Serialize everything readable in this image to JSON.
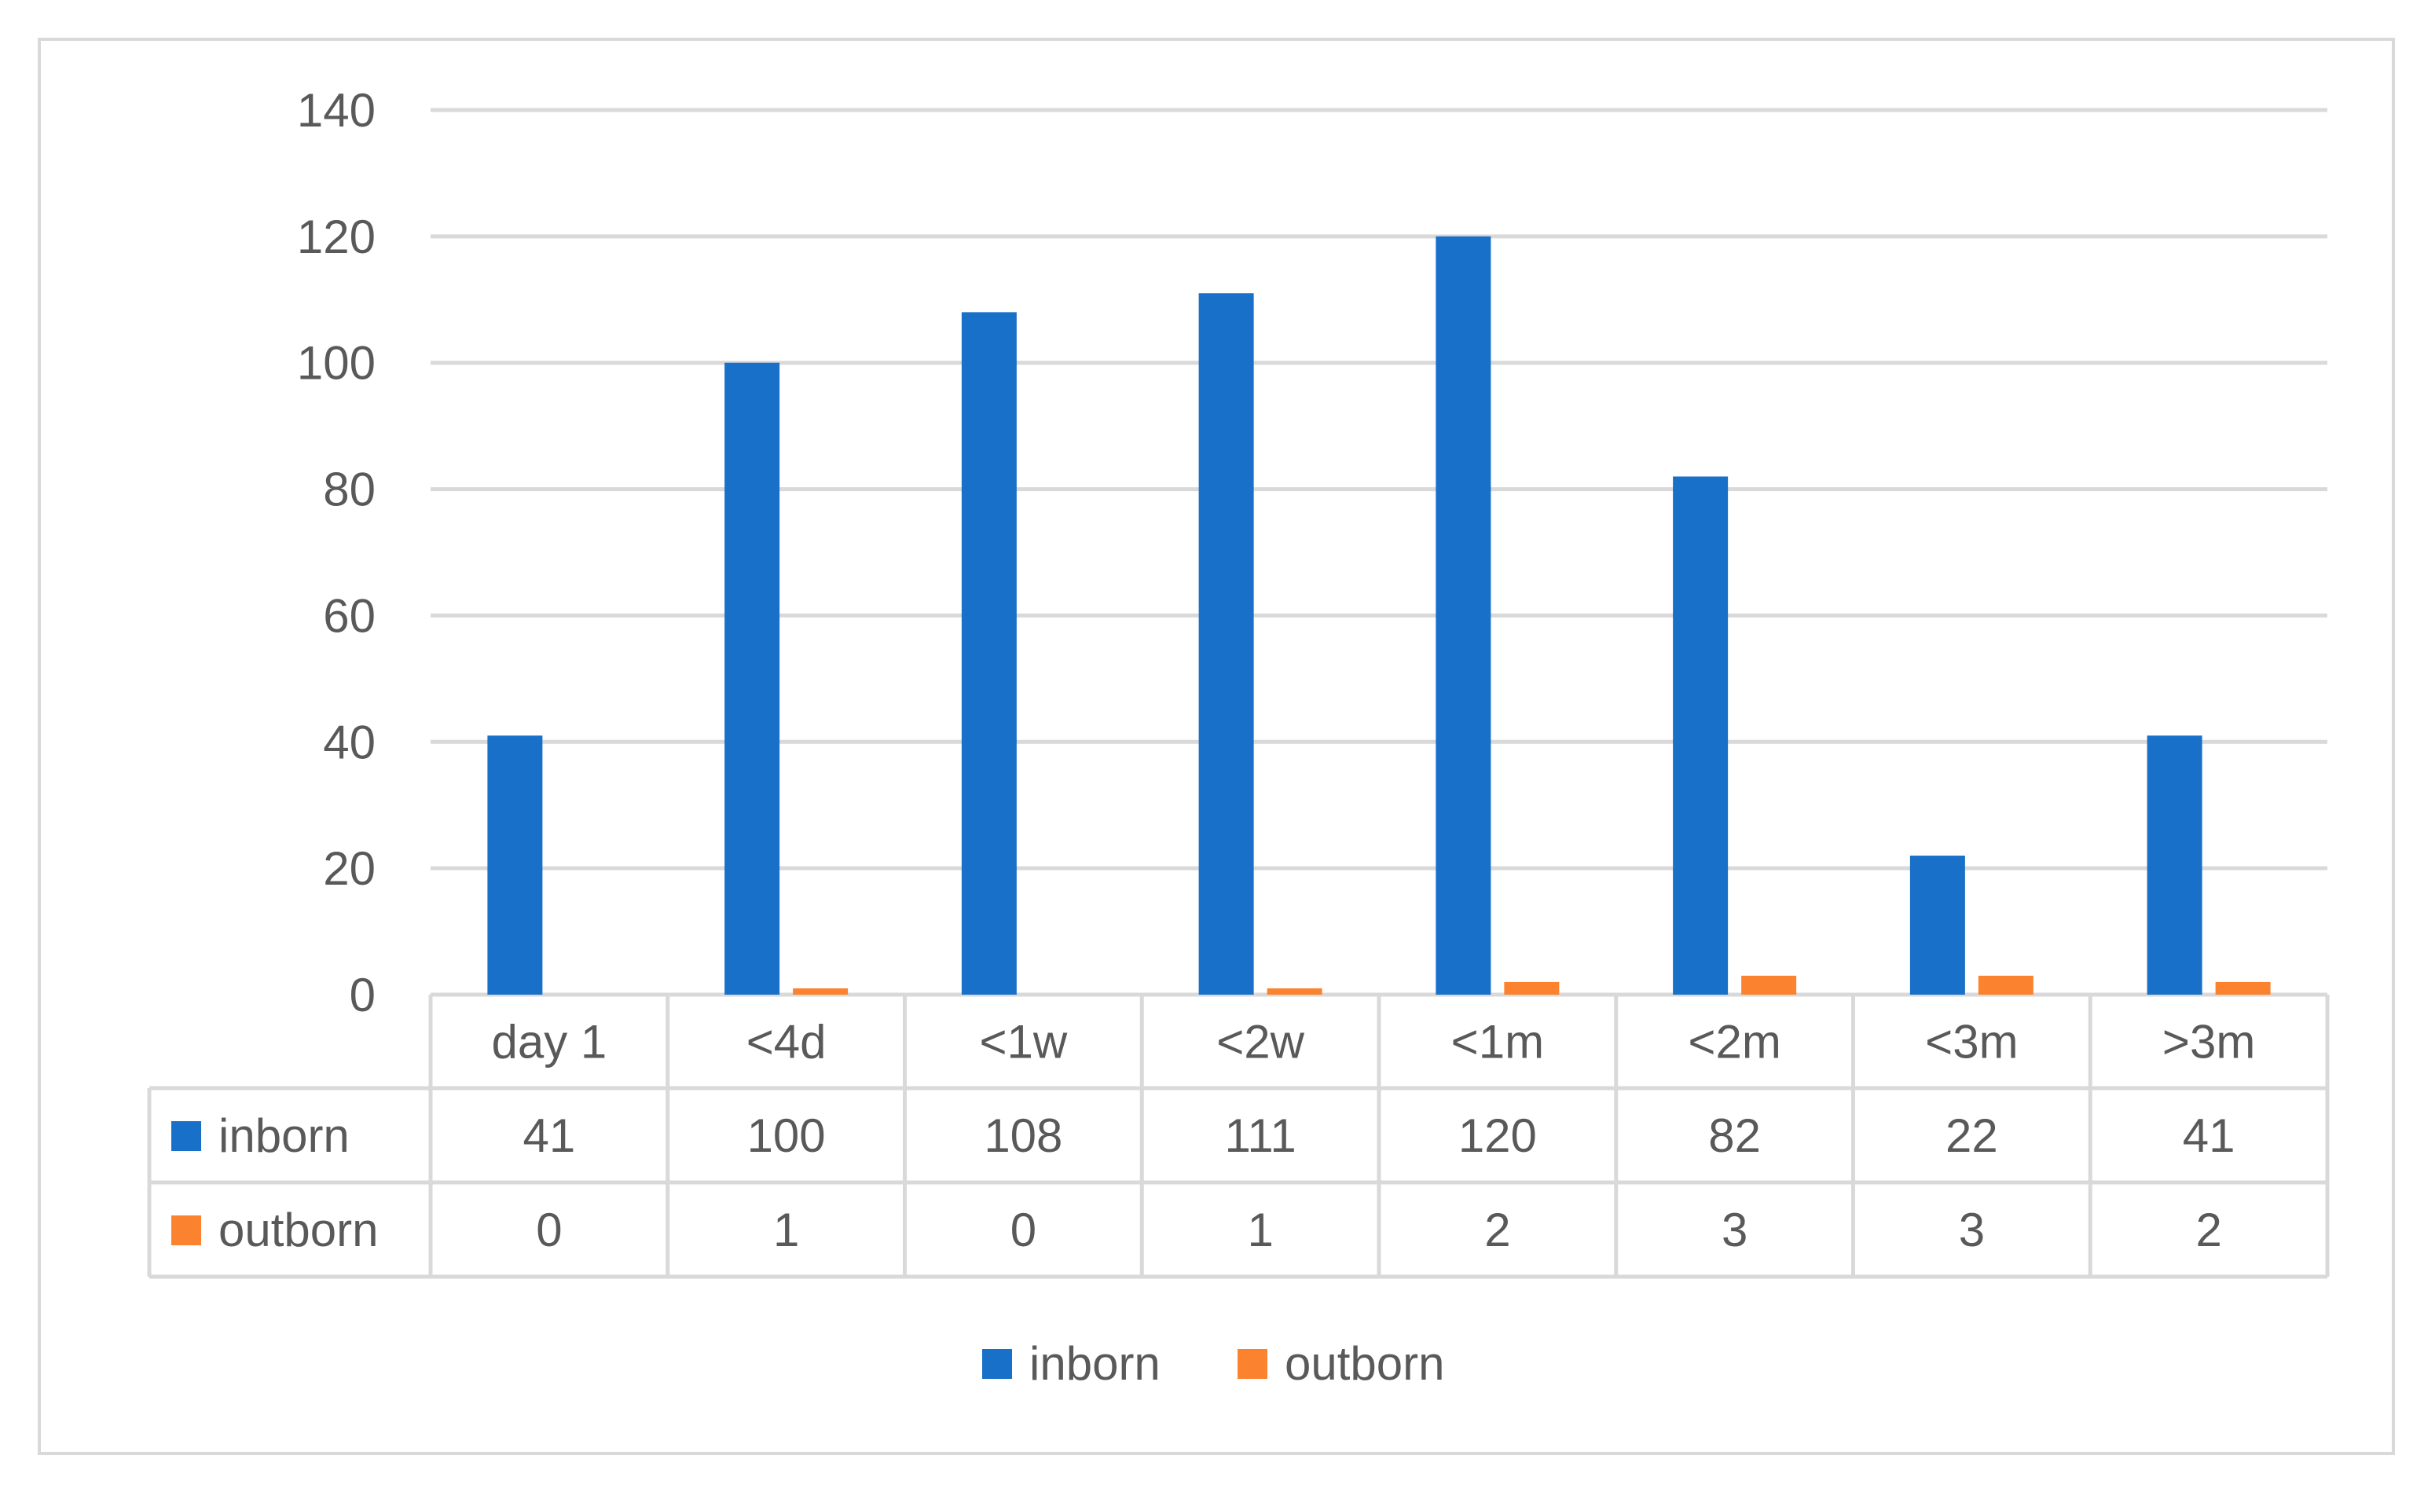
{
  "colors": {
    "inborn": "#1870c8",
    "outborn": "#fb8330",
    "grid": "#d9d9d9",
    "text": "#595959"
  },
  "chart_data": {
    "type": "bar",
    "categories": [
      "day 1",
      "<4d",
      "<1w",
      "<2w",
      "<1m",
      "<2m",
      "<3m",
      ">3m"
    ],
    "series": [
      {
        "name": "inborn",
        "values": [
          41,
          100,
          108,
          111,
          120,
          82,
          22,
          41
        ]
      },
      {
        "name": "outborn",
        "values": [
          0,
          1,
          0,
          1,
          2,
          3,
          3,
          2
        ]
      }
    ],
    "ylim": [
      0,
      140
    ],
    "yticks": [
      0,
      20,
      40,
      60,
      80,
      100,
      120,
      140
    ],
    "grid": true,
    "legend": "bottom",
    "data_table": true
  }
}
